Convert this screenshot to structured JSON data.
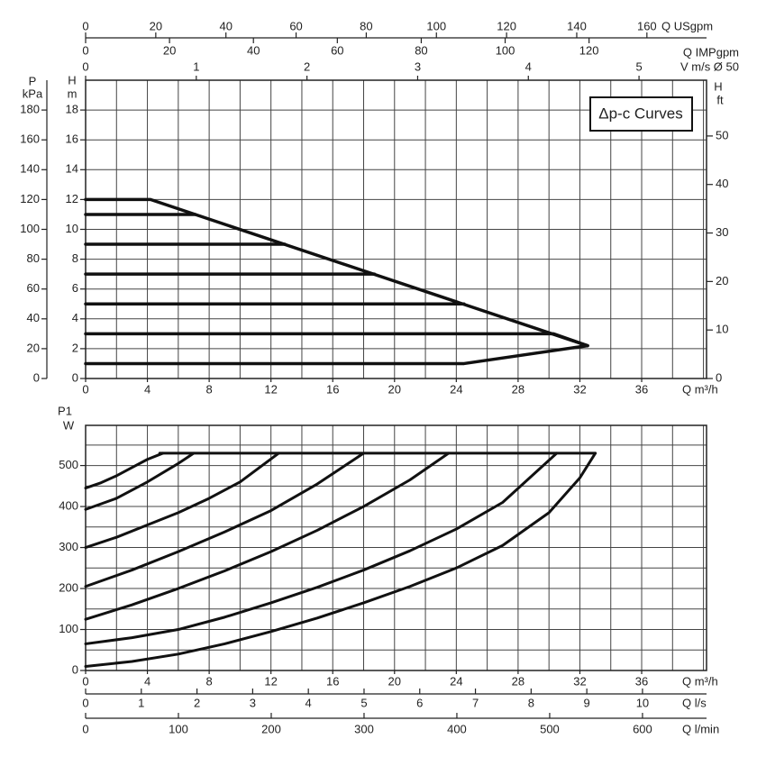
{
  "chart_data": [
    {
      "type": "line",
      "annotation": "Δp-c Curves",
      "xlabel": "Q m³/h",
      "xlim": [
        0,
        40.2
      ],
      "xticks": [
        0,
        4,
        8,
        12,
        16,
        20,
        24,
        28,
        32,
        36
      ],
      "ylabel": "H",
      "yunit": "m",
      "ylim": [
        0,
        20
      ],
      "yticks": [
        0,
        2,
        4,
        6,
        8,
        10,
        12,
        14,
        16,
        18
      ],
      "grid": true,
      "grid_step_x": 2,
      "grid_step_y": 2,
      "color": "#111111",
      "axes": {
        "kpa": {
          "label": "P",
          "unit": "kPa",
          "lim": [
            0,
            200
          ],
          "ticks": [
            0,
            20,
            40,
            60,
            80,
            100,
            120,
            140,
            160,
            180
          ]
        },
        "ft": {
          "label": "H",
          "unit": "ft",
          "lim": [
            0,
            61.5
          ],
          "ticks": [
            0,
            10,
            20,
            30,
            40,
            50
          ]
        },
        "usgpm": {
          "label": "Q USgpm",
          "lim": [
            0,
            177
          ],
          "ticks": [
            0,
            20,
            40,
            60,
            80,
            100,
            120,
            140,
            160
          ]
        },
        "impgpm": {
          "label": "Q IMPgpm",
          "lim": [
            0,
            148
          ],
          "ticks": [
            0,
            20,
            40,
            60,
            80,
            100,
            120
          ]
        },
        "vel": {
          "label": "V m/s Ø 50",
          "lim": [
            0,
            5.61
          ],
          "ticks": [
            0,
            1,
            2,
            3,
            4,
            5
          ]
        }
      },
      "series": [
        {
          "x": [
            0,
            4.2,
            32.5
          ],
          "values": [
            12,
            12,
            2.2
          ]
        },
        {
          "x": [
            0,
            7.1
          ],
          "values": [
            11,
            11
          ]
        },
        {
          "x": [
            0,
            12.9
          ],
          "values": [
            9,
            9
          ]
        },
        {
          "x": [
            0,
            18.7
          ],
          "values": [
            7,
            7
          ]
        },
        {
          "x": [
            0,
            24.5
          ],
          "values": [
            5,
            5
          ]
        },
        {
          "x": [
            0,
            30.3,
            32.5
          ],
          "values": [
            3,
            3,
            2.2
          ]
        },
        {
          "x": [
            0,
            24.5,
            32.5
          ],
          "values": [
            1,
            1,
            2.2
          ]
        }
      ]
    },
    {
      "type": "line",
      "xlabel": "Q m³/h",
      "xlim": [
        0,
        40.2
      ],
      "xticks": [
        0,
        4,
        8,
        12,
        16,
        20,
        24,
        28,
        32,
        36
      ],
      "ylabel": "P1",
      "yunit": "W",
      "ylim": [
        0,
        598
      ],
      "yticks": [
        0,
        100,
        200,
        300,
        400,
        500
      ],
      "grid": true,
      "grid_step_x": 2,
      "grid_step_y": 50,
      "color": "#111111",
      "axes": {
        "ls": {
          "label": "Q l/s",
          "lim": [
            0,
            11.15
          ],
          "ticks": [
            0,
            1,
            2,
            3,
            4,
            5,
            6,
            7,
            8,
            9,
            10
          ]
        },
        "lmin": {
          "label": "Q l/min",
          "lim": [
            0,
            669
          ],
          "ticks": [
            0,
            100,
            200,
            300,
            400,
            500,
            600
          ]
        }
      },
      "series": [
        {
          "x": [
            4.8,
            33
          ],
          "values": [
            530,
            530
          ]
        },
        {
          "x": [
            0,
            1,
            2,
            3,
            4,
            5
          ],
          "values": [
            445,
            458,
            475,
            495,
            515,
            530
          ]
        },
        {
          "x": [
            0,
            2,
            4,
            6,
            7
          ],
          "values": [
            393,
            420,
            460,
            505,
            530
          ]
        },
        {
          "x": [
            0,
            2,
            4,
            6,
            8,
            10,
            12.5
          ],
          "values": [
            300,
            325,
            355,
            385,
            420,
            460,
            530
          ]
        },
        {
          "x": [
            0,
            3,
            6,
            9,
            12,
            15,
            18
          ],
          "values": [
            205,
            245,
            290,
            338,
            390,
            455,
            530
          ]
        },
        {
          "x": [
            0,
            3,
            6,
            9,
            12,
            15,
            18,
            21,
            23.5
          ],
          "values": [
            125,
            160,
            200,
            243,
            290,
            342,
            400,
            465,
            530
          ]
        },
        {
          "x": [
            0,
            3,
            6,
            9,
            12,
            15,
            18,
            21,
            24,
            27,
            30.5
          ],
          "values": [
            65,
            80,
            100,
            130,
            165,
            203,
            245,
            292,
            345,
            410,
            530
          ]
        },
        {
          "x": [
            0,
            3,
            6,
            9,
            12,
            15,
            18,
            21,
            24,
            27,
            30,
            32,
            33
          ],
          "values": [
            10,
            22,
            40,
            65,
            95,
            128,
            165,
            205,
            250,
            305,
            385,
            470,
            530
          ]
        }
      ]
    }
  ]
}
